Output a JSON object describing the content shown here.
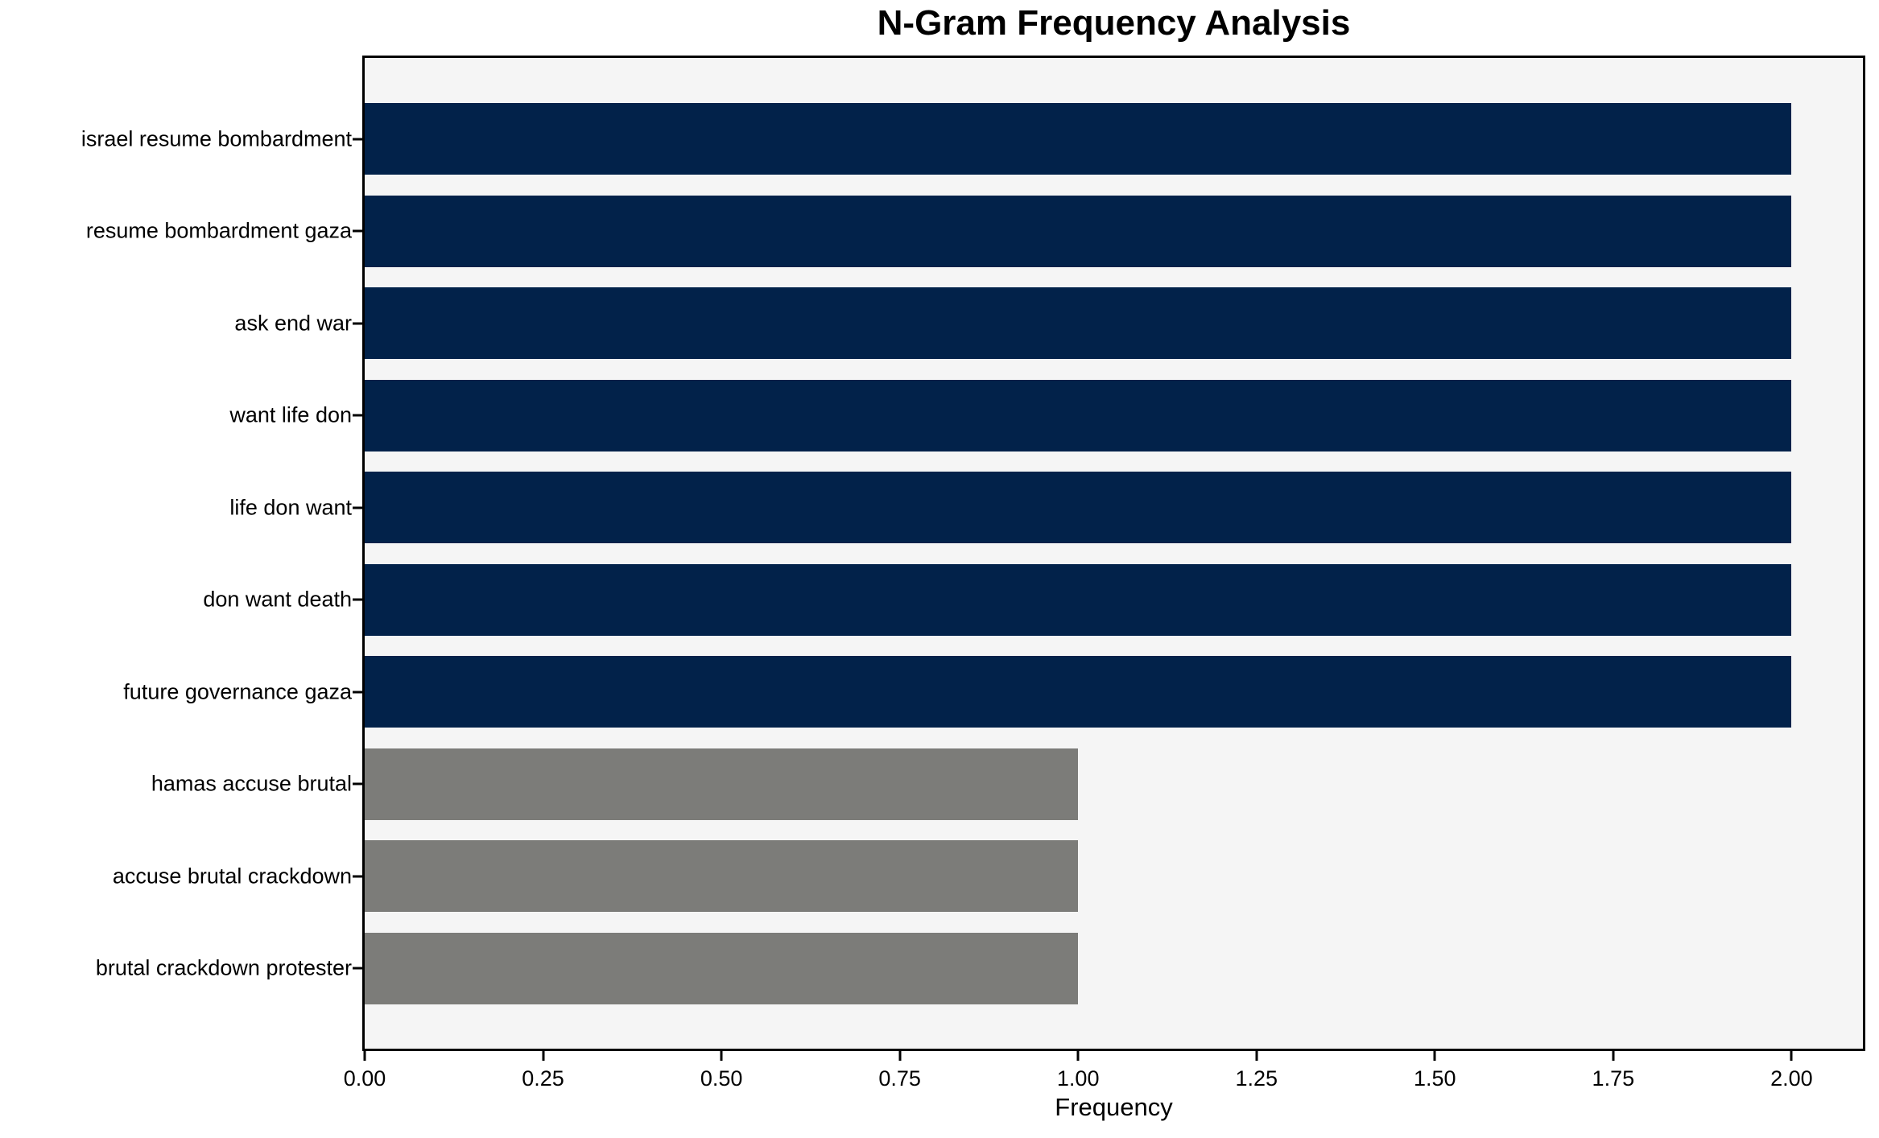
{
  "chart_data": {
    "type": "bar",
    "orientation": "horizontal",
    "title": "N-Gram Frequency Analysis",
    "xlabel": "Frequency",
    "ylabel": "",
    "categories": [
      "israel resume bombardment",
      "resume bombardment gaza",
      "ask end war",
      "want life don",
      "life don want",
      "don want death",
      "future governance gaza",
      "hamas accuse brutal",
      "accuse brutal crackdown",
      "brutal crackdown protester"
    ],
    "values": [
      2,
      2,
      2,
      2,
      2,
      2,
      2,
      1,
      1,
      1
    ],
    "bar_colors": [
      "#02224a",
      "#02224a",
      "#02224a",
      "#02224a",
      "#02224a",
      "#02224a",
      "#02224a",
      "#7c7c79",
      "#7c7c79",
      "#7c7c79"
    ],
    "xlim": [
      0,
      2.1
    ],
    "xticks": [
      0,
      0.25,
      0.5,
      0.75,
      1.0,
      1.25,
      1.5,
      1.75,
      2.0
    ],
    "xtick_labels": [
      "0.00",
      "0.25",
      "0.50",
      "0.75",
      "1.00",
      "1.25",
      "1.50",
      "1.75",
      "2.00"
    ],
    "grid": false,
    "legend": null,
    "colors": {
      "bar_primary": "#02224a",
      "bar_secondary": "#7c7c79",
      "plot_background": "#f5f5f5",
      "figure_background": "#ffffff",
      "axis": "#000000",
      "text": "#000000"
    }
  }
}
